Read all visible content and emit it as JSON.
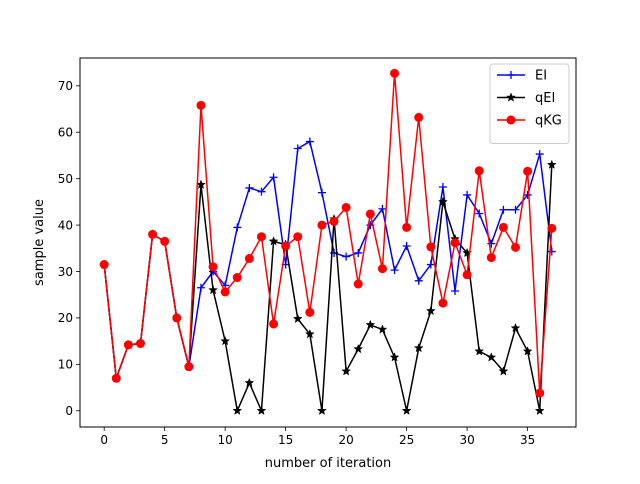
{
  "chart_data": {
    "type": "line",
    "title": "",
    "xlabel": "number of iteration",
    "ylabel": "sample value",
    "xlim": [
      -2,
      39
    ],
    "ylim": [
      -3.5,
      76
    ],
    "xticks": [
      0,
      5,
      10,
      15,
      20,
      25,
      30,
      35
    ],
    "yticks": [
      0,
      10,
      20,
      30,
      40,
      50,
      60,
      70
    ],
    "grid": false,
    "legend_position": "top-right",
    "x": [
      0,
      1,
      2,
      3,
      4,
      5,
      6,
      7,
      8,
      9,
      10,
      11,
      12,
      13,
      14,
      15,
      16,
      17,
      18,
      19,
      20,
      21,
      22,
      23,
      24,
      25,
      26,
      27,
      28,
      29,
      30,
      31,
      32,
      33,
      34,
      35,
      36,
      37
    ],
    "series": [
      {
        "name": "EI",
        "color": "#0000ff",
        "marker": "plus",
        "values": [
          31.5,
          7,
          14.2,
          14.5,
          38,
          36.5,
          20,
          9.5,
          26.5,
          30,
          27,
          39.5,
          48,
          47.2,
          50.3,
          31.5,
          56.5,
          58,
          47,
          34,
          33.2,
          34,
          40,
          43.5,
          30.3,
          35.5,
          28,
          31.5,
          48.2,
          25.8,
          46.5,
          42.5,
          36,
          43.3,
          43.3,
          46.5,
          55.3,
          34.3
        ]
      },
      {
        "name": "qEI",
        "color": "#000000",
        "marker": "star",
        "values": [
          31.5,
          7,
          14.2,
          14.5,
          38,
          36.5,
          20,
          9.5,
          48.7,
          26,
          15,
          0,
          6,
          0,
          36.5,
          35.8,
          19.8,
          16.5,
          0,
          41.3,
          8.5,
          13.3,
          18.5,
          17.5,
          11.5,
          0,
          13.5,
          21.5,
          45,
          37,
          34,
          12.8,
          11.5,
          8.5,
          17.8,
          12.8,
          0,
          53
        ]
      },
      {
        "name": "qKG",
        "color": "#ff0000",
        "marker": "circle",
        "values": [
          31.5,
          7,
          14.2,
          14.5,
          38,
          36.5,
          20,
          9.5,
          65.8,
          31,
          25.6,
          28.7,
          32.8,
          37.5,
          18.7,
          35.5,
          37.5,
          21.2,
          40,
          40.8,
          43.8,
          27.3,
          42.4,
          30.6,
          72.7,
          39.5,
          63.2,
          35.3,
          23.2,
          36.2,
          29.3,
          51.7,
          33,
          39.5,
          35.2,
          51.6,
          3.8,
          39.3
        ]
      }
    ]
  }
}
